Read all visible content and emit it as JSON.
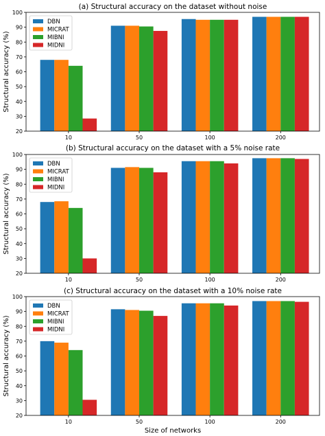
{
  "figure": {
    "xlabel": "Size of networks"
  },
  "chart_data": [
    {
      "type": "bar",
      "title": "(a) Structural accuracy on the dataset without noise",
      "xlabel": "",
      "ylabel": "Structural accuracy (%)",
      "ylim": [
        20,
        100
      ],
      "yticks": [
        20,
        30,
        40,
        50,
        60,
        70,
        80,
        90,
        100
      ],
      "categories": [
        "10",
        "50",
        "100",
        "200"
      ],
      "legend_position": "top-left",
      "series": [
        {
          "name": "DBN",
          "color": "#1f77b4",
          "values": [
            68,
            91,
            95.5,
            97
          ]
        },
        {
          "name": "MICRAT",
          "color": "#ff7f0e",
          "values": [
            68,
            91,
            95,
            97
          ]
        },
        {
          "name": "MIBNI",
          "color": "#2ca02c",
          "values": [
            64,
            90.5,
            95,
            97
          ]
        },
        {
          "name": "MIDNI",
          "color": "#d62728",
          "values": [
            28.5,
            87.5,
            95,
            97
          ]
        }
      ]
    },
    {
      "type": "bar",
      "title": "(b) Structural accuracy on the dataset with a 5% noise rate",
      "xlabel": "",
      "ylabel": "Structural accuracy (%)",
      "ylim": [
        20,
        100
      ],
      "yticks": [
        20,
        30,
        40,
        50,
        60,
        70,
        80,
        90,
        100
      ],
      "categories": [
        "10",
        "50",
        "100",
        "200"
      ],
      "legend_position": "top-left",
      "series": [
        {
          "name": "DBN",
          "color": "#1f77b4",
          "values": [
            68,
            91,
            95.5,
            97.5
          ]
        },
        {
          "name": "MICRAT",
          "color": "#ff7f0e",
          "values": [
            68.5,
            91.5,
            95.5,
            97.5
          ]
        },
        {
          "name": "MIBNI",
          "color": "#2ca02c",
          "values": [
            64,
            91,
            95.5,
            97.5
          ]
        },
        {
          "name": "MIDNI",
          "color": "#d62728",
          "values": [
            30,
            88,
            94,
            97
          ]
        }
      ]
    },
    {
      "type": "bar",
      "title": "(c) Structural accuracy on the dataset with a 10% noise rate",
      "xlabel": "Size of networks",
      "ylabel": "Structural accuracy (%)",
      "ylim": [
        20,
        100
      ],
      "yticks": [
        20,
        30,
        40,
        50,
        60,
        70,
        80,
        90,
        100
      ],
      "categories": [
        "10",
        "50",
        "100",
        "200"
      ],
      "legend_position": "top-left",
      "series": [
        {
          "name": "DBN",
          "color": "#1f77b4",
          "values": [
            70,
            91.5,
            95.5,
            97
          ]
        },
        {
          "name": "MICRAT",
          "color": "#ff7f0e",
          "values": [
            69,
            91,
            95.5,
            97
          ]
        },
        {
          "name": "MIBNI",
          "color": "#2ca02c",
          "values": [
            64,
            90.5,
            95.5,
            97
          ]
        },
        {
          "name": "MIDNI",
          "color": "#d62728",
          "values": [
            30.5,
            87,
            94,
            96.5
          ]
        }
      ]
    }
  ]
}
